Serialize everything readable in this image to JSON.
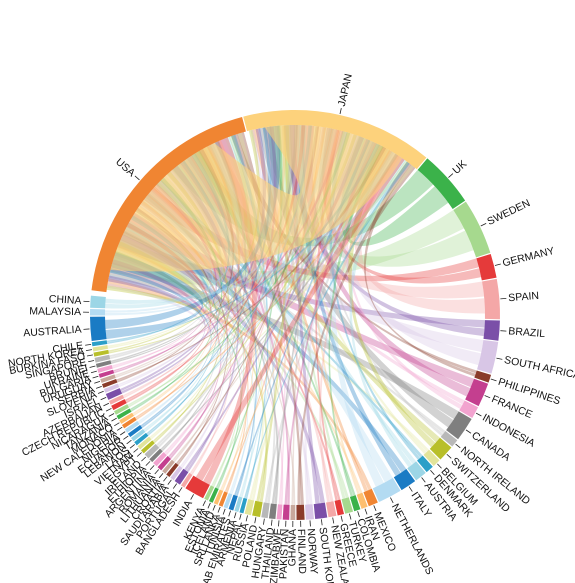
{
  "chart_data": {
    "type": "chord",
    "countries": [
      {
        "name": "USA",
        "color": "#f08532",
        "size": 30
      },
      {
        "name": "JAPAN",
        "color": "#fdd27c",
        "size": 24
      },
      {
        "name": "UK",
        "color": "#3bb24a",
        "size": 7
      },
      {
        "name": "SWEDEN",
        "color": "#a6d98e",
        "size": 7
      },
      {
        "name": "GERMANY",
        "color": "#e53a3a",
        "size": 3
      },
      {
        "name": "SPAIN",
        "color": "#f4a7a7",
        "size": 5
      },
      {
        "name": "BRAZIL",
        "color": "#7b4fa8",
        "size": 2.5
      },
      {
        "name": "SOUTH AFRICA",
        "color": "#d8c6e6",
        "size": 4
      },
      {
        "name": "PHILIPPINES",
        "color": "#8a3b2a",
        "size": 1
      },
      {
        "name": "FRANCE",
        "color": "#c43f8f",
        "size": 3
      },
      {
        "name": "INDONESIA",
        "color": "#f2a3cf",
        "size": 1.5
      },
      {
        "name": "CANADA",
        "color": "#7f7f7f",
        "size": 3
      },
      {
        "name": "NORTH IRELAND",
        "color": "#b8b8b8",
        "size": 1
      },
      {
        "name": "SWITZERLAND",
        "color": "#b8bf2a",
        "size": 2
      },
      {
        "name": "BELGIUM",
        "color": "#e2e49a",
        "size": 1
      },
      {
        "name": "DENMARK",
        "color": "#2a9fc8",
        "size": 1
      },
      {
        "name": "AUSTRIA",
        "color": "#9cd6e6",
        "size": 1.5
      },
      {
        "name": "ITALY",
        "color": "#1a7bc4",
        "size": 2
      },
      {
        "name": "NETHERLANDS",
        "color": "#b3dbf2",
        "size": 3
      },
      {
        "name": "MEXICO",
        "color": "#f08532",
        "size": 1.2
      },
      {
        "name": "IRAN",
        "color": "#fdbf6f",
        "size": 0.8
      },
      {
        "name": "COLOMBIA",
        "color": "#3bb24a",
        "size": 0.8
      },
      {
        "name": "TURKEY",
        "color": "#a6d98e",
        "size": 1
      },
      {
        "name": "GREECE",
        "color": "#e53a3a",
        "size": 0.8
      },
      {
        "name": "NEW ZEALAND",
        "color": "#f4a7a7",
        "size": 1
      },
      {
        "name": "SOUTH KOREA",
        "color": "#7b4fa8",
        "size": 1.5
      },
      {
        "name": "NORWAY",
        "color": "#d8c6e6",
        "size": 1
      },
      {
        "name": "FINLAND",
        "color": "#8a3b2a",
        "size": 1
      },
      {
        "name": "GHANA",
        "color": "#c8a89c",
        "size": 0.6
      },
      {
        "name": "PAKISTAN",
        "color": "#c43f8f",
        "size": 0.8
      },
      {
        "name": "ZIMBABWE",
        "color": "#f2a3cf",
        "size": 0.6
      },
      {
        "name": "THAILAND",
        "color": "#7f7f7f",
        "size": 0.8
      },
      {
        "name": "HUNGARY",
        "color": "#b8b8b8",
        "size": 0.8
      },
      {
        "name": "POLAND",
        "color": "#b8bf2a",
        "size": 1
      },
      {
        "name": "RUSSIA",
        "color": "#e2e49a",
        "size": 0.8
      },
      {
        "name": "NEPAL",
        "color": "#2a9fc8",
        "size": 0.5
      },
      {
        "name": "ARMENIA",
        "color": "#9cd6e6",
        "size": 0.5
      },
      {
        "name": "U ARAB EMIRATES",
        "color": "#1a7bc4",
        "size": 0.6
      },
      {
        "name": "TUNISIA",
        "color": "#b3dbf2",
        "size": 0.5
      },
      {
        "name": "SRI LANKA",
        "color": "#f08532",
        "size": 0.5
      },
      {
        "name": "ICELAND",
        "color": "#fdbf6f",
        "size": 0.5
      },
      {
        "name": "ESTONIA",
        "color": "#3bb24a",
        "size": 0.5
      },
      {
        "name": "KENYA",
        "color": "#a6d98e",
        "size": 0.5
      },
      {
        "name": "INDIA",
        "color": "#e53a3a",
        "size": 2.5
      },
      {
        "name": "BANGLADESH",
        "color": "#f4a7a7",
        "size": 0.5
      },
      {
        "name": "PORTUGAL",
        "color": "#7b4fa8",
        "size": 0.8
      },
      {
        "name": "SAUDI ARABIA",
        "color": "#d8c6e6",
        "size": 0.5
      },
      {
        "name": "CROATIA",
        "color": "#8a3b2a",
        "size": 0.5
      },
      {
        "name": "LITHUANIA",
        "color": "#c8a89c",
        "size": 0.5
      },
      {
        "name": "ROMANIA",
        "color": "#c43f8f",
        "size": 0.6
      },
      {
        "name": "ARGENTINA",
        "color": "#f2a3cf",
        "size": 0.6
      },
      {
        "name": "ETHIOPIA",
        "color": "#7f7f7f",
        "size": 0.5
      },
      {
        "name": "IRELAND",
        "color": "#b8b8b8",
        "size": 0.7
      },
      {
        "name": "EGYPT",
        "color": "#b8bf2a",
        "size": 0.5
      },
      {
        "name": "VIETNAM",
        "color": "#e2e49a",
        "size": 0.5
      },
      {
        "name": "LAOS",
        "color": "#2a9fc8",
        "size": 0.5
      },
      {
        "name": "LEBANON",
        "color": "#9cd6e6",
        "size": 0.5
      },
      {
        "name": "ECUADOR",
        "color": "#1a7bc4",
        "size": 0.5
      },
      {
        "name": "NIGERIA",
        "color": "#b3dbf2",
        "size": 0.5
      },
      {
        "name": "NEW CALEDONIA",
        "color": "#f08532",
        "size": 0.5
      },
      {
        "name": "MONACO",
        "color": "#fdbf6f",
        "size": 0.5
      },
      {
        "name": "TANZANIA",
        "color": "#3bb24a",
        "size": 0.5
      },
      {
        "name": "NICARAGUA",
        "color": "#a6d98e",
        "size": 0.5
      },
      {
        "name": "CZECH REPUBLIC",
        "color": "#e53a3a",
        "size": 0.6
      },
      {
        "name": "AZERBAIJAN",
        "color": "#f4a7a7",
        "size": 0.5
      },
      {
        "name": "ISRAEL",
        "color": "#7b4fa8",
        "size": 0.8
      },
      {
        "name": "SLOVENIA",
        "color": "#d8c6e6",
        "size": 0.5
      },
      {
        "name": "SERBIA",
        "color": "#8a3b2a",
        "size": 0.5
      },
      {
        "name": "URUGUAY",
        "color": "#c8a89c",
        "size": 0.5
      },
      {
        "name": "BULGARIA",
        "color": "#c43f8f",
        "size": 0.5
      },
      {
        "name": "UKRAINE",
        "color": "#f2a3cf",
        "size": 0.5
      },
      {
        "name": "BRUNEI",
        "color": "#7f7f7f",
        "size": 0.5
      },
      {
        "name": "SINGAPORE",
        "color": "#b8b8b8",
        "size": 0.6
      },
      {
        "name": "BURKINA FASO",
        "color": "#b8bf2a",
        "size": 0.5
      },
      {
        "name": "NORTH KOREA",
        "color": "#e2e49a",
        "size": 0.5
      },
      {
        "name": "CHILE",
        "color": "#2a9fc8",
        "size": 0.5
      },
      {
        "name": "AUSTRALIA",
        "color": "#1a7bc4",
        "size": 3
      },
      {
        "name": "MALAYSIA",
        "color": "#b3dbf2",
        "size": 0.8
      },
      {
        "name": "CHINA",
        "color": "#9cd6e6",
        "size": 1.5
      }
    ]
  }
}
